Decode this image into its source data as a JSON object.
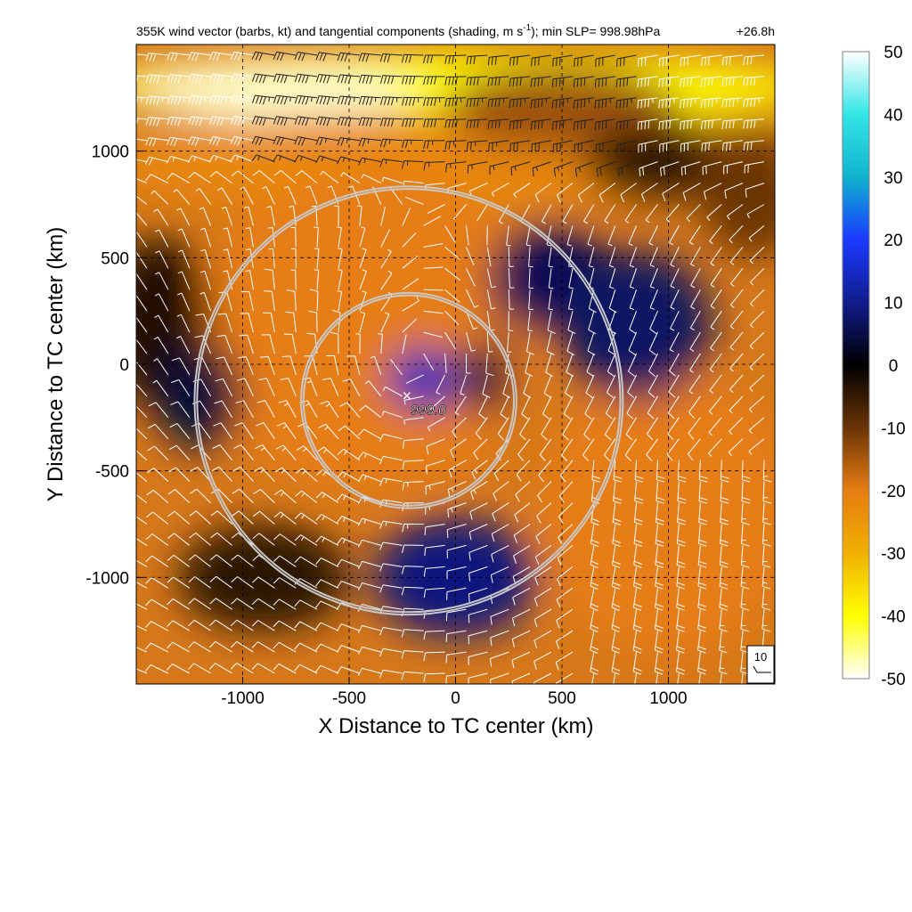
{
  "chart_data": {
    "type": "heatmap",
    "title": "355K wind vector (barbs, kt) and tangential components (shading, m s",
    "title_sup": "-1",
    "title_suffix": "); min SLP= 998.98hPa",
    "time_label": "+26.8h",
    "xlabel": "X Distance to TC center (km)",
    "ylabel": "Y Distance to TC center (km)",
    "xlim": [
      -1500,
      1500
    ],
    "ylim": [
      -1500,
      1500
    ],
    "x_ticks": [
      -1000,
      -500,
      0,
      500,
      1000
    ],
    "y_ticks": [
      -1000,
      -500,
      0,
      500,
      1000
    ],
    "x_tick_labels": [
      "-1000",
      "-500",
      "0",
      "500",
      "1000"
    ],
    "y_tick_labels": [
      "-1000",
      "-500",
      "0",
      "500",
      "1000"
    ],
    "grid": true,
    "colorbar": {
      "range": [
        -50,
        50
      ],
      "ticks": [
        50,
        40,
        30,
        20,
        10,
        0,
        -10,
        -20,
        -30,
        -40,
        -50
      ],
      "tick_labels": [
        "50",
        "40",
        "30",
        "20",
        "10",
        "0",
        "-10",
        "-20",
        "-30",
        "-40",
        "-50"
      ],
      "stops": [
        {
          "value": 50,
          "color": "#ffffff"
        },
        {
          "value": 40,
          "color": "#33e6e6"
        },
        {
          "value": 30,
          "color": "#11b3cf"
        },
        {
          "value": 20,
          "color": "#1a3aff"
        },
        {
          "value": 10,
          "color": "#101c8c"
        },
        {
          "value": 0,
          "color": "#000000"
        },
        {
          "value": -10,
          "color": "#6b3406"
        },
        {
          "value": -20,
          "color": "#e67d12"
        },
        {
          "value": -30,
          "color": "#f0b000"
        },
        {
          "value": -40,
          "color": "#ffff00"
        },
        {
          "value": -50,
          "color": "#ffffff"
        }
      ]
    },
    "center": {
      "x": -220,
      "y": -170,
      "marker": "×",
      "label": "999.0"
    },
    "range_rings_km": [
      500,
      1000
    ],
    "reference_barb": {
      "label": "10",
      "speed_kt": 10
    },
    "shading_features": [
      {
        "x": 0,
        "y": 1300,
        "rx": 1700,
        "ry": 170,
        "value": -40
      },
      {
        "x": -850,
        "y": 1280,
        "rx": 650,
        "ry": 140,
        "value": -48
      },
      {
        "x": 0,
        "y": 950,
        "rx": 1700,
        "ry": 230,
        "value": -22
      },
      {
        "x": -400,
        "y": 150,
        "rx": 800,
        "ry": 750,
        "value": -20
      },
      {
        "x": 1000,
        "y": -700,
        "rx": 600,
        "ry": 650,
        "value": -20
      },
      {
        "x": 500,
        "y": 1200,
        "rx": 550,
        "ry": 200,
        "value": -14
      },
      {
        "x": 950,
        "y": 950,
        "rx": 350,
        "ry": 180,
        "value": -4
      },
      {
        "x": 1400,
        "y": 800,
        "rx": 250,
        "ry": 300,
        "value": -10
      },
      {
        "x": -1400,
        "y": 200,
        "rx": 250,
        "ry": 400,
        "value": -3
      },
      {
        "x": -900,
        "y": -1000,
        "rx": 400,
        "ry": 250,
        "value": -4
      },
      {
        "x": 450,
        "y": 400,
        "rx": 300,
        "ry": 260,
        "value": 6
      },
      {
        "x": 850,
        "y": 180,
        "rx": 350,
        "ry": 350,
        "value": 7
      },
      {
        "x": -150,
        "y": -70,
        "rx": 170,
        "ry": 150,
        "value": 14
      },
      {
        "x": 150,
        "y": -60,
        "rx": 120,
        "ry": 180,
        "value": 4
      },
      {
        "x": 0,
        "y": -1000,
        "rx": 380,
        "ry": 280,
        "value": 9
      },
      {
        "x": -1200,
        "y": -150,
        "rx": 200,
        "ry": 250,
        "value": 4
      }
    ]
  }
}
